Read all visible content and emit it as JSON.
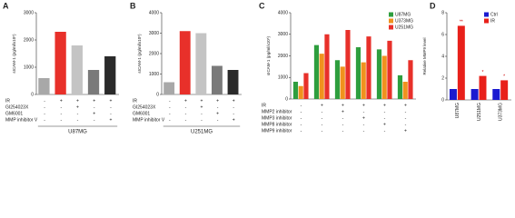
{
  "chart_data": [
    {
      "type": "bar",
      "label": "A",
      "ylabel": "sICAM-1 (pg/ml/x10⁵)",
      "ylim": [
        0,
        3000
      ],
      "yticks": [
        0,
        1000,
        2000,
        3000
      ],
      "categories": [
        null,
        null,
        null,
        null,
        null
      ],
      "series": [
        {
          "colors": [
            "#a8a8a8",
            "#e8302a",
            "#c4c4c4",
            "#7a7a7a",
            "#2a2a2a"
          ],
          "values": [
            600,
            2300,
            1800,
            900,
            1400
          ]
        }
      ],
      "conditions": [
        {
          "name": "IR",
          "signs": [
            "-",
            "+",
            "+",
            "+",
            "+"
          ]
        },
        {
          "name": "GI254023X",
          "signs": [
            "-",
            "-",
            "+",
            "-",
            "-"
          ]
        },
        {
          "name": "GM6001",
          "signs": [
            "-",
            "-",
            "-",
            "+",
            "-"
          ]
        },
        {
          "name": "MMP inhibitor V",
          "signs": [
            "-",
            "-",
            "-",
            "-",
            "+"
          ]
        }
      ],
      "group_label": "U87MG"
    },
    {
      "type": "bar",
      "label": "B",
      "ylabel": "sICAM-1 (pg/ml/x10⁵)",
      "ylim": [
        0,
        4000
      ],
      "yticks": [
        0,
        1000,
        2000,
        3000,
        4000
      ],
      "categories": [
        null,
        null,
        null,
        null,
        null
      ],
      "series": [
        {
          "colors": [
            "#a8a8a8",
            "#e8302a",
            "#c4c4c4",
            "#7a7a7a",
            "#2a2a2a"
          ],
          "values": [
            600,
            3100,
            3000,
            1400,
            1200
          ]
        }
      ],
      "conditions": [
        {
          "name": "IR",
          "signs": [
            "-",
            "+",
            "+",
            "+",
            "+"
          ]
        },
        {
          "name": "GI254023X",
          "signs": [
            "-",
            "-",
            "+",
            "-",
            "-"
          ]
        },
        {
          "name": "GM6001",
          "signs": [
            "-",
            "-",
            "-",
            "+",
            "-"
          ]
        },
        {
          "name": "MMP inhibitor V",
          "signs": [
            "-",
            "-",
            "-",
            "-",
            "+"
          ]
        }
      ],
      "group_label": "U251MG"
    },
    {
      "type": "bar",
      "label": "C",
      "ylabel": "sICAM-1 (pg/ml/x10⁵)",
      "ylim": [
        0,
        4000
      ],
      "yticks": [
        0,
        1000,
        2000,
        3000,
        4000
      ],
      "categories": [
        null,
        null,
        null,
        null,
        null,
        null
      ],
      "series": [
        {
          "name": "U87MG",
          "color": "#2e9e3e",
          "values": [
            800,
            2500,
            1800,
            2400,
            2300,
            1100
          ]
        },
        {
          "name": "U373MG",
          "color": "#f0921e",
          "values": [
            600,
            2100,
            1500,
            1700,
            2000,
            800
          ]
        },
        {
          "name": "U251MG",
          "color": "#e8302a",
          "values": [
            1200,
            3000,
            3200,
            2900,
            2700,
            1800
          ]
        }
      ],
      "conditions": [
        {
          "name": "IR",
          "signs": [
            "-",
            "+",
            "+",
            "+",
            "+",
            "+"
          ]
        },
        {
          "name": "MMP2 inhibitor",
          "signs": [
            "-",
            "-",
            "+",
            "-",
            "-",
            "-"
          ]
        },
        {
          "name": "MMP3 inhibitor",
          "signs": [
            "-",
            "-",
            "-",
            "+",
            "-",
            "-"
          ]
        },
        {
          "name": "MMP8 inhibitor",
          "signs": [
            "-",
            "-",
            "-",
            "-",
            "+",
            "-"
          ]
        },
        {
          "name": "MMP9 inhibitor",
          "signs": [
            "-",
            "-",
            "-",
            "-",
            "-",
            "+"
          ]
        }
      ],
      "legend": "top-right"
    },
    {
      "type": "bar",
      "label": "D",
      "ylabel": "Relative MMP9 level",
      "ylim": [
        0,
        8
      ],
      "yticks": [
        0,
        2,
        4,
        6,
        8
      ],
      "categories": [
        "U87MG",
        "U251MG",
        "U373MG"
      ],
      "series": [
        {
          "name": "Ctrl",
          "color": "#1a1ad0",
          "values": [
            1,
            1,
            1
          ]
        },
        {
          "name": "IR",
          "color": "#e8201a",
          "values": [
            6.8,
            2.2,
            1.8
          ],
          "annotations": [
            "**",
            "*",
            "*"
          ]
        }
      ],
      "legend": "top-right",
      "rotate_categories": true
    }
  ]
}
